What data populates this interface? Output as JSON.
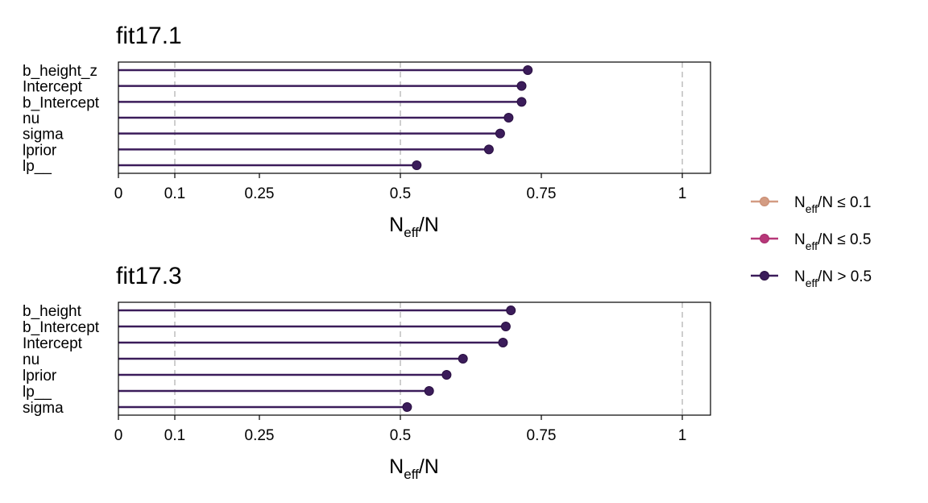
{
  "legend": {
    "items": [
      {
        "pre": "N",
        "sub": "eff",
        "post": "/N ≤ 0.1",
        "color": "#d39c83",
        "outline": "#c88a70"
      },
      {
        "pre": "N",
        "sub": "eff",
        "post": "/N ≤ 0.5",
        "color": "#b73779",
        "outline": "#a52c6c"
      },
      {
        "pre": "N",
        "sub": "eff",
        "post": "/N > 0.5",
        "color": "#3b1c5a",
        "outline": "#2a1042"
      }
    ]
  },
  "chart_data": [
    {
      "type": "lollipop",
      "title": "fit17.1",
      "xlabel": {
        "pre": "N",
        "sub": "eff",
        "post": "/N"
      },
      "xlim": [
        0,
        1.05
      ],
      "xticks": [
        0,
        0.1,
        0.25,
        0.5,
        0.75,
        1
      ],
      "xtick_labels": [
        "0",
        "0.1",
        "0.25",
        "0.5",
        "0.75",
        "1"
      ],
      "reference_lines": [
        0.1,
        0.5,
        1
      ],
      "categories": [
        "b_height_z",
        "Intercept",
        "b_Intercept",
        "nu",
        "sigma",
        "lprior",
        "lp__"
      ],
      "values": [
        0.726,
        0.715,
        0.715,
        0.692,
        0.677,
        0.657,
        0.529
      ],
      "point_color": "#3b1c5a"
    },
    {
      "type": "lollipop",
      "title": "fit17.3",
      "xlabel": {
        "pre": "N",
        "sub": "eff",
        "post": "/N"
      },
      "xlim": [
        0,
        1.05
      ],
      "xticks": [
        0,
        0.1,
        0.25,
        0.5,
        0.75,
        1
      ],
      "xtick_labels": [
        "0",
        "0.1",
        "0.25",
        "0.5",
        "0.75",
        "1"
      ],
      "reference_lines": [
        0.1,
        0.5,
        1
      ],
      "categories": [
        "b_height",
        "b_Intercept",
        "Intercept",
        "nu",
        "lprior",
        "lp__",
        "sigma"
      ],
      "values": [
        0.696,
        0.687,
        0.682,
        0.611,
        0.582,
        0.551,
        0.512
      ],
      "point_color": "#3b1c5a"
    }
  ]
}
